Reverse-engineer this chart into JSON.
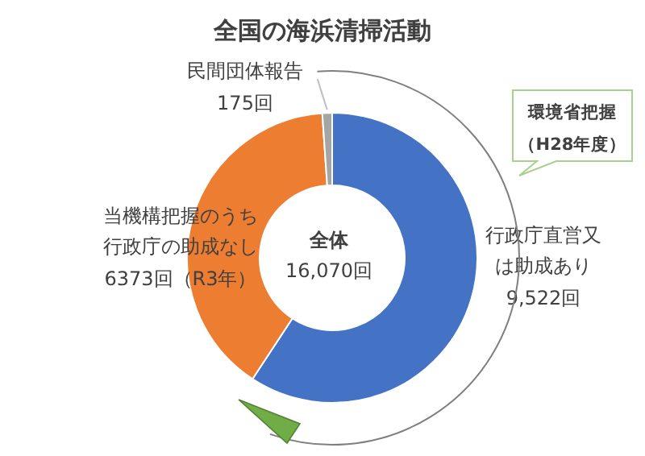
{
  "chart_data": {
    "type": "donut",
    "title": "全国の海浜清掃活動",
    "categories": [
      "行政庁直営又は助成あり",
      "当機構把握のうち行政庁の助成なし",
      "民間団体報告"
    ],
    "values": [
      9522,
      6373,
      175
    ],
    "colors": [
      "#4472c4",
      "#ed7d31",
      "#a5a5a5"
    ],
    "value_labels": [
      "9,522回",
      "6373回（R3年）",
      "175回"
    ],
    "annotations": [
      "全体",
      "16,070回",
      "環境省把握",
      "（H28年度）"
    ]
  }
}
